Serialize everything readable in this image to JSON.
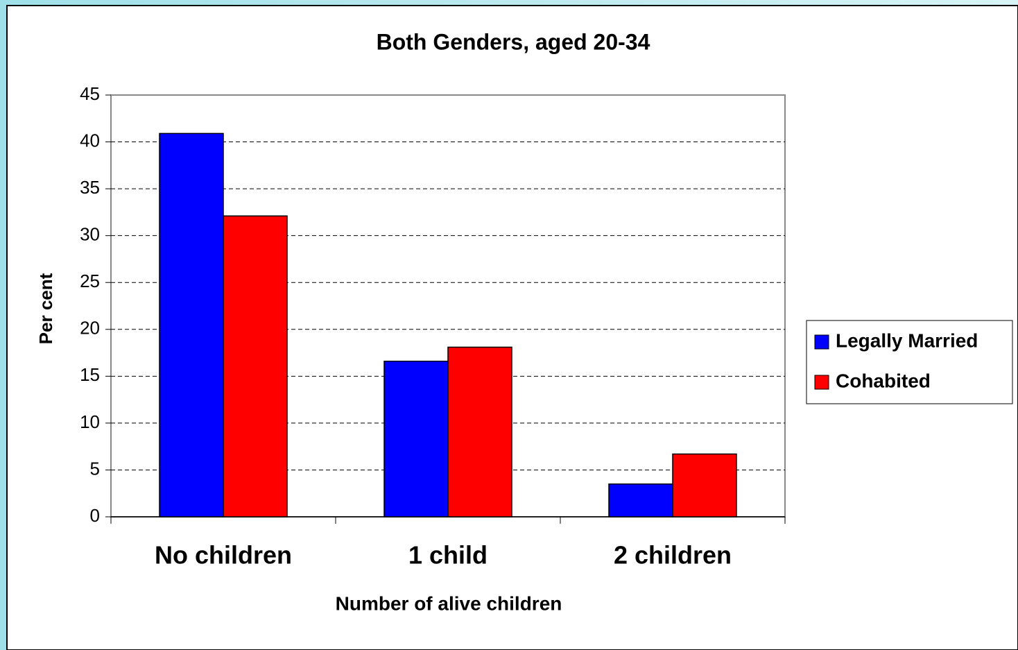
{
  "chart_data": {
    "type": "bar",
    "title": "Both Genders, aged 20-34",
    "x_label": "Number of alive children",
    "y_label": "Per cent",
    "categories": [
      "No children",
      "1 child",
      "2 children"
    ],
    "series": [
      {
        "name": "Legally Married",
        "color": "#0000ff",
        "values": [
          40.9,
          16.6,
          3.5
        ]
      },
      {
        "name": "Cohabited",
        "color": "#ff0000",
        "values": [
          32.1,
          18.1,
          6.7
        ]
      }
    ],
    "ylim": [
      0,
      45
    ],
    "yticks": [
      0,
      5,
      10,
      15,
      20,
      25,
      30,
      35,
      40,
      45
    ],
    "grid": true,
    "legend": "right"
  }
}
